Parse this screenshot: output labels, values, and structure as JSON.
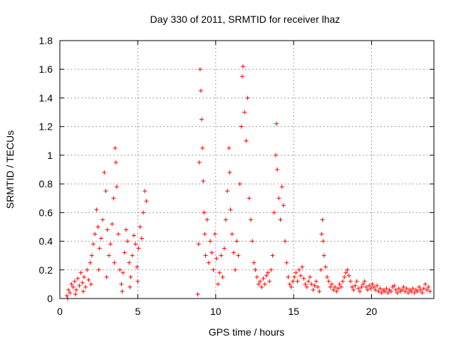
{
  "chart_data": {
    "type": "scatter",
    "title": "Day 330 of 2011, SRMTID for receiver lhaz",
    "xlabel": "GPS time / hours",
    "ylabel": "SRMTID / TECUs",
    "xlim": [
      0,
      24
    ],
    "ylim": [
      0,
      1.8
    ],
    "xticks": [
      0,
      5,
      10,
      15,
      20
    ],
    "xtick_labels": [
      "0",
      "5",
      "10",
      "15",
      "20"
    ],
    "yticks": [
      0,
      0.2,
      0.4,
      0.6,
      0.8,
      1,
      1.2,
      1.4,
      1.6,
      1.8
    ],
    "ytick_labels": [
      "0",
      "0.2",
      "0.4",
      "0.6",
      "0.8",
      "1",
      "1.2",
      "1.4",
      "1.6",
      "1.8"
    ],
    "grid": true,
    "marker": "plus",
    "color": "#ff0000",
    "series": [
      {
        "points": [
          [
            0.45,
            0.02
          ],
          [
            0.55,
            0.06
          ],
          [
            0.65,
            0.04
          ],
          [
            0.75,
            0.1
          ],
          [
            0.85,
            0.08
          ],
          [
            0.95,
            0.12
          ],
          [
            1.05,
            0.06
          ],
          [
            1.15,
            0.14
          ],
          [
            1.25,
            0.09
          ],
          [
            1.35,
            0.18
          ],
          [
            1.45,
            0.11
          ],
          [
            1.55,
            0.15
          ],
          [
            1.65,
            0.08
          ],
          [
            1.75,
            0.2
          ],
          [
            1.85,
            0.13
          ],
          [
            1.95,
            0.25
          ],
          [
            2.05,
            0.3
          ],
          [
            2.15,
            0.38
          ],
          [
            2.25,
            0.45
          ],
          [
            2.35,
            0.62
          ],
          [
            2.45,
            0.5
          ],
          [
            2.55,
            0.35
          ],
          [
            2.65,
            0.42
          ],
          [
            2.75,
            0.55
          ],
          [
            2.85,
            0.88
          ],
          [
            2.95,
            0.75
          ],
          [
            3.05,
            0.48
          ],
          [
            3.15,
            0.3
          ],
          [
            3.25,
            0.38
          ],
          [
            3.35,
            0.52
          ],
          [
            3.45,
            0.7
          ],
          [
            3.55,
            1.05
          ],
          [
            3.6,
            0.95
          ],
          [
            3.65,
            0.78
          ],
          [
            3.75,
            0.45
          ],
          [
            3.85,
            0.2
          ],
          [
            3.95,
            0.1
          ],
          [
            4.05,
            0.18
          ],
          [
            4.15,
            0.32
          ],
          [
            4.25,
            0.48
          ],
          [
            4.35,
            0.4
          ],
          [
            4.45,
            0.25
          ],
          [
            4.55,
            0.15
          ],
          [
            4.65,
            0.3
          ],
          [
            4.75,
            0.44
          ],
          [
            4.85,
            0.38
          ],
          [
            4.95,
            0.22
          ],
          [
            5.05,
            0.35
          ],
          [
            5.15,
            0.5
          ],
          [
            5.25,
            0.42
          ],
          [
            5.35,
            0.6
          ],
          [
            5.45,
            0.75
          ],
          [
            5.55,
            0.68
          ],
          [
            0.5,
            0.0
          ],
          [
            1.0,
            0.03
          ],
          [
            1.5,
            0.05
          ],
          [
            2.0,
            0.1
          ],
          [
            2.5,
            0.2
          ],
          [
            3.0,
            0.15
          ],
          [
            3.5,
            0.25
          ],
          [
            4.0,
            0.05
          ],
          [
            4.5,
            0.08
          ],
          [
            5.0,
            0.12
          ],
          [
            8.85,
            0.03
          ],
          [
            8.9,
            0.38
          ],
          [
            8.95,
            0.95
          ],
          [
            9.0,
            1.6
          ],
          [
            9.05,
            1.45
          ],
          [
            9.1,
            1.25
          ],
          [
            9.15,
            1.05
          ],
          [
            9.2,
            0.82
          ],
          [
            9.25,
            0.6
          ],
          [
            9.3,
            0.45
          ],
          [
            9.35,
            0.3
          ],
          [
            9.45,
            0.55
          ],
          [
            9.55,
            0.25
          ],
          [
            9.65,
            0.4
          ],
          [
            9.75,
            0.32
          ],
          [
            9.85,
            0.2
          ],
          [
            9.95,
            0.45
          ],
          [
            10.05,
            0.28
          ],
          [
            10.15,
            0.1
          ],
          [
            10.25,
            0.18
          ],
          [
            10.35,
            0.3
          ],
          [
            10.45,
            0.15
          ],
          [
            10.55,
            0.35
          ],
          [
            10.65,
            0.55
          ],
          [
            10.75,
            0.75
          ],
          [
            10.85,
            1.05
          ],
          [
            10.9,
            0.88
          ],
          [
            10.95,
            0.62
          ],
          [
            11.05,
            0.45
          ],
          [
            11.15,
            0.32
          ],
          [
            11.25,
            0.2
          ],
          [
            11.35,
            0.4
          ],
          [
            11.45,
            0.3
          ],
          [
            11.55,
            0.8
          ],
          [
            11.65,
            1.2
          ],
          [
            11.7,
            1.55
          ],
          [
            11.75,
            1.62
          ],
          [
            11.85,
            1.3
          ],
          [
            11.95,
            1.1
          ],
          [
            12.05,
            1.4
          ],
          [
            12.15,
            0.7
          ],
          [
            12.25,
            0.55
          ],
          [
            12.35,
            0.4
          ],
          [
            12.45,
            0.25
          ],
          [
            12.55,
            0.2
          ],
          [
            12.65,
            0.15
          ],
          [
            12.75,
            0.1
          ],
          [
            12.85,
            0.12
          ],
          [
            12.95,
            0.08
          ],
          [
            13.05,
            0.14
          ],
          [
            13.15,
            0.1
          ],
          [
            13.25,
            0.16
          ],
          [
            13.35,
            0.18
          ],
          [
            13.45,
            0.12
          ],
          [
            13.55,
            0.2
          ],
          [
            13.65,
            0.3
          ],
          [
            13.75,
            0.6
          ],
          [
            13.85,
            1.0
          ],
          [
            13.9,
            1.22
          ],
          [
            13.95,
            0.9
          ],
          [
            14.05,
            0.7
          ],
          [
            14.15,
            0.55
          ],
          [
            14.25,
            0.78
          ],
          [
            14.35,
            0.65
          ],
          [
            14.45,
            0.4
          ],
          [
            14.55,
            0.25
          ],
          [
            14.65,
            0.15
          ],
          [
            14.75,
            0.1
          ],
          [
            14.85,
            0.08
          ],
          [
            14.95,
            0.12
          ],
          [
            15.05,
            0.15
          ],
          [
            15.15,
            0.18
          ],
          [
            15.25,
            0.12
          ],
          [
            15.35,
            0.2
          ],
          [
            15.45,
            0.16
          ],
          [
            15.55,
            0.22
          ],
          [
            15.65,
            0.14
          ],
          [
            15.75,
            0.1
          ],
          [
            15.85,
            0.08
          ],
          [
            15.95,
            0.12
          ],
          [
            16.05,
            0.15
          ],
          [
            16.15,
            0.1
          ],
          [
            16.25,
            0.06
          ],
          [
            16.35,
            0.09
          ],
          [
            16.45,
            0.12
          ],
          [
            16.55,
            0.08
          ],
          [
            16.65,
            0.05
          ],
          [
            16.75,
            0.2
          ],
          [
            16.8,
            0.45
          ],
          [
            16.85,
            0.55
          ],
          [
            16.9,
            0.4
          ],
          [
            16.95,
            0.3
          ],
          [
            17.05,
            0.22
          ],
          [
            17.15,
            0.15
          ],
          [
            17.25,
            0.12
          ],
          [
            17.35,
            0.08
          ],
          [
            17.45,
            0.1
          ],
          [
            17.55,
            0.06
          ],
          [
            17.65,
            0.08
          ],
          [
            17.75,
            0.05
          ],
          [
            17.85,
            0.07
          ],
          [
            17.95,
            0.1
          ],
          [
            18.05,
            0.08
          ],
          [
            18.15,
            0.12
          ],
          [
            18.25,
            0.15
          ],
          [
            18.35,
            0.18
          ],
          [
            18.45,
            0.2
          ],
          [
            18.55,
            0.16
          ],
          [
            18.65,
            0.12
          ],
          [
            18.75,
            0.08
          ],
          [
            18.85,
            0.06
          ],
          [
            18.95,
            0.09
          ],
          [
            19.05,
            0.12
          ],
          [
            19.15,
            0.07
          ],
          [
            19.25,
            0.05
          ],
          [
            19.35,
            0.08
          ],
          [
            19.45,
            0.1
          ],
          [
            19.55,
            0.12
          ],
          [
            19.65,
            0.08
          ],
          [
            19.75,
            0.06
          ],
          [
            19.85,
            0.09
          ],
          [
            19.95,
            0.07
          ],
          [
            20.05,
            0.1
          ],
          [
            20.15,
            0.08
          ],
          [
            20.25,
            0.06
          ],
          [
            20.35,
            0.09
          ],
          [
            20.45,
            0.05
          ],
          [
            20.55,
            0.07
          ],
          [
            20.65,
            0.04
          ],
          [
            20.75,
            0.06
          ],
          [
            20.85,
            0.05
          ],
          [
            20.95,
            0.07
          ],
          [
            21.05,
            0.04
          ],
          [
            21.15,
            0.06
          ],
          [
            21.25,
            0.05
          ],
          [
            21.35,
            0.08
          ],
          [
            21.45,
            0.09
          ],
          [
            21.55,
            0.06
          ],
          [
            21.65,
            0.04
          ],
          [
            21.75,
            0.07
          ],
          [
            21.85,
            0.05
          ],
          [
            21.95,
            0.06
          ],
          [
            22.05,
            0.08
          ],
          [
            22.15,
            0.05
          ],
          [
            22.25,
            0.07
          ],
          [
            22.35,
            0.04
          ],
          [
            22.45,
            0.06
          ],
          [
            22.55,
            0.05
          ],
          [
            22.65,
            0.07
          ],
          [
            22.75,
            0.04
          ],
          [
            22.85,
            0.06
          ],
          [
            22.95,
            0.05
          ],
          [
            23.05,
            0.08
          ],
          [
            23.15,
            0.06
          ],
          [
            23.25,
            0.04
          ],
          [
            23.35,
            0.07
          ],
          [
            23.45,
            0.1
          ],
          [
            23.55,
            0.06
          ],
          [
            23.65,
            0.08
          ],
          [
            23.75,
            0.05
          ]
        ]
      }
    ]
  }
}
